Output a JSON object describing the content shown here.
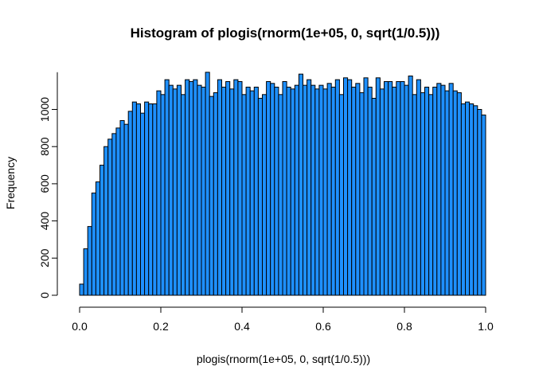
{
  "chart_data": {
    "type": "bar",
    "title": "Histogram of plogis(rnorm(1e+05, 0, sqrt(1/0.5)))",
    "xlabel": "plogis(rnorm(1e+05, 0, sqrt(1/0.5)))",
    "ylabel": "Frequency",
    "bin_width": 0.01,
    "xlim": [
      0,
      1
    ],
    "ylim": [
      0,
      1200
    ],
    "x_ticks": [
      0.0,
      0.2,
      0.4,
      0.6,
      0.8,
      1.0
    ],
    "x_tick_labels": [
      "0.0",
      "0.2",
      "0.4",
      "0.6",
      "0.8",
      "1.0"
    ],
    "y_ticks": [
      0,
      200,
      400,
      600,
      800,
      1000
    ],
    "y_tick_labels": [
      "0",
      "200",
      "400",
      "600",
      "800",
      "1000"
    ],
    "bar_color": "#1e90ff",
    "bar_border": "#000000",
    "grid": false,
    "bin_starts": [
      0.0,
      0.01,
      0.02,
      0.03,
      0.04,
      0.05,
      0.06,
      0.07,
      0.08,
      0.09,
      0.1,
      0.11,
      0.12,
      0.13,
      0.14,
      0.15,
      0.16,
      0.17,
      0.18,
      0.19,
      0.2,
      0.21,
      0.22,
      0.23,
      0.24,
      0.25,
      0.26,
      0.27,
      0.28,
      0.29,
      0.3,
      0.31,
      0.32,
      0.33,
      0.34,
      0.35,
      0.36,
      0.37,
      0.38,
      0.39,
      0.4,
      0.41,
      0.42,
      0.43,
      0.44,
      0.45,
      0.46,
      0.47,
      0.48,
      0.49,
      0.5,
      0.51,
      0.52,
      0.53,
      0.54,
      0.55,
      0.56,
      0.57,
      0.58,
      0.59,
      0.6,
      0.61,
      0.62,
      0.63,
      0.64,
      0.65,
      0.66,
      0.67,
      0.68,
      0.69,
      0.7,
      0.71,
      0.72,
      0.73,
      0.74,
      0.75,
      0.76,
      0.77,
      0.78,
      0.79,
      0.8,
      0.81,
      0.82,
      0.83,
      0.84,
      0.85,
      0.86,
      0.87,
      0.88,
      0.89,
      0.9,
      0.91,
      0.92,
      0.93,
      0.94,
      0.95,
      0.96,
      0.97,
      0.98,
      0.99
    ],
    "values": [
      60,
      250,
      370,
      550,
      610,
      700,
      800,
      840,
      870,
      900,
      940,
      920,
      990,
      1040,
      1030,
      980,
      1040,
      1030,
      1030,
      1100,
      1080,
      1160,
      1130,
      1110,
      1130,
      1080,
      1160,
      1150,
      1160,
      1130,
      1120,
      1200,
      1070,
      1090,
      1160,
      1120,
      1150,
      1110,
      1160,
      1150,
      1080,
      1120,
      1100,
      1120,
      1060,
      1080,
      1150,
      1140,
      1120,
      1080,
      1150,
      1120,
      1110,
      1130,
      1190,
      1130,
      1160,
      1130,
      1110,
      1130,
      1110,
      1140,
      1120,
      1160,
      1080,
      1170,
      1160,
      1120,
      1140,
      1090,
      1170,
      1120,
      1060,
      1170,
      1110,
      1150,
      1150,
      1120,
      1150,
      1150,
      1130,
      1180,
      1080,
      1160,
      1090,
      1120,
      1080,
      1120,
      1140,
      1130,
      1100,
      1140,
      1100,
      1090,
      1030,
      1040,
      1030,
      1020,
      1000,
      970
    ]
  }
}
